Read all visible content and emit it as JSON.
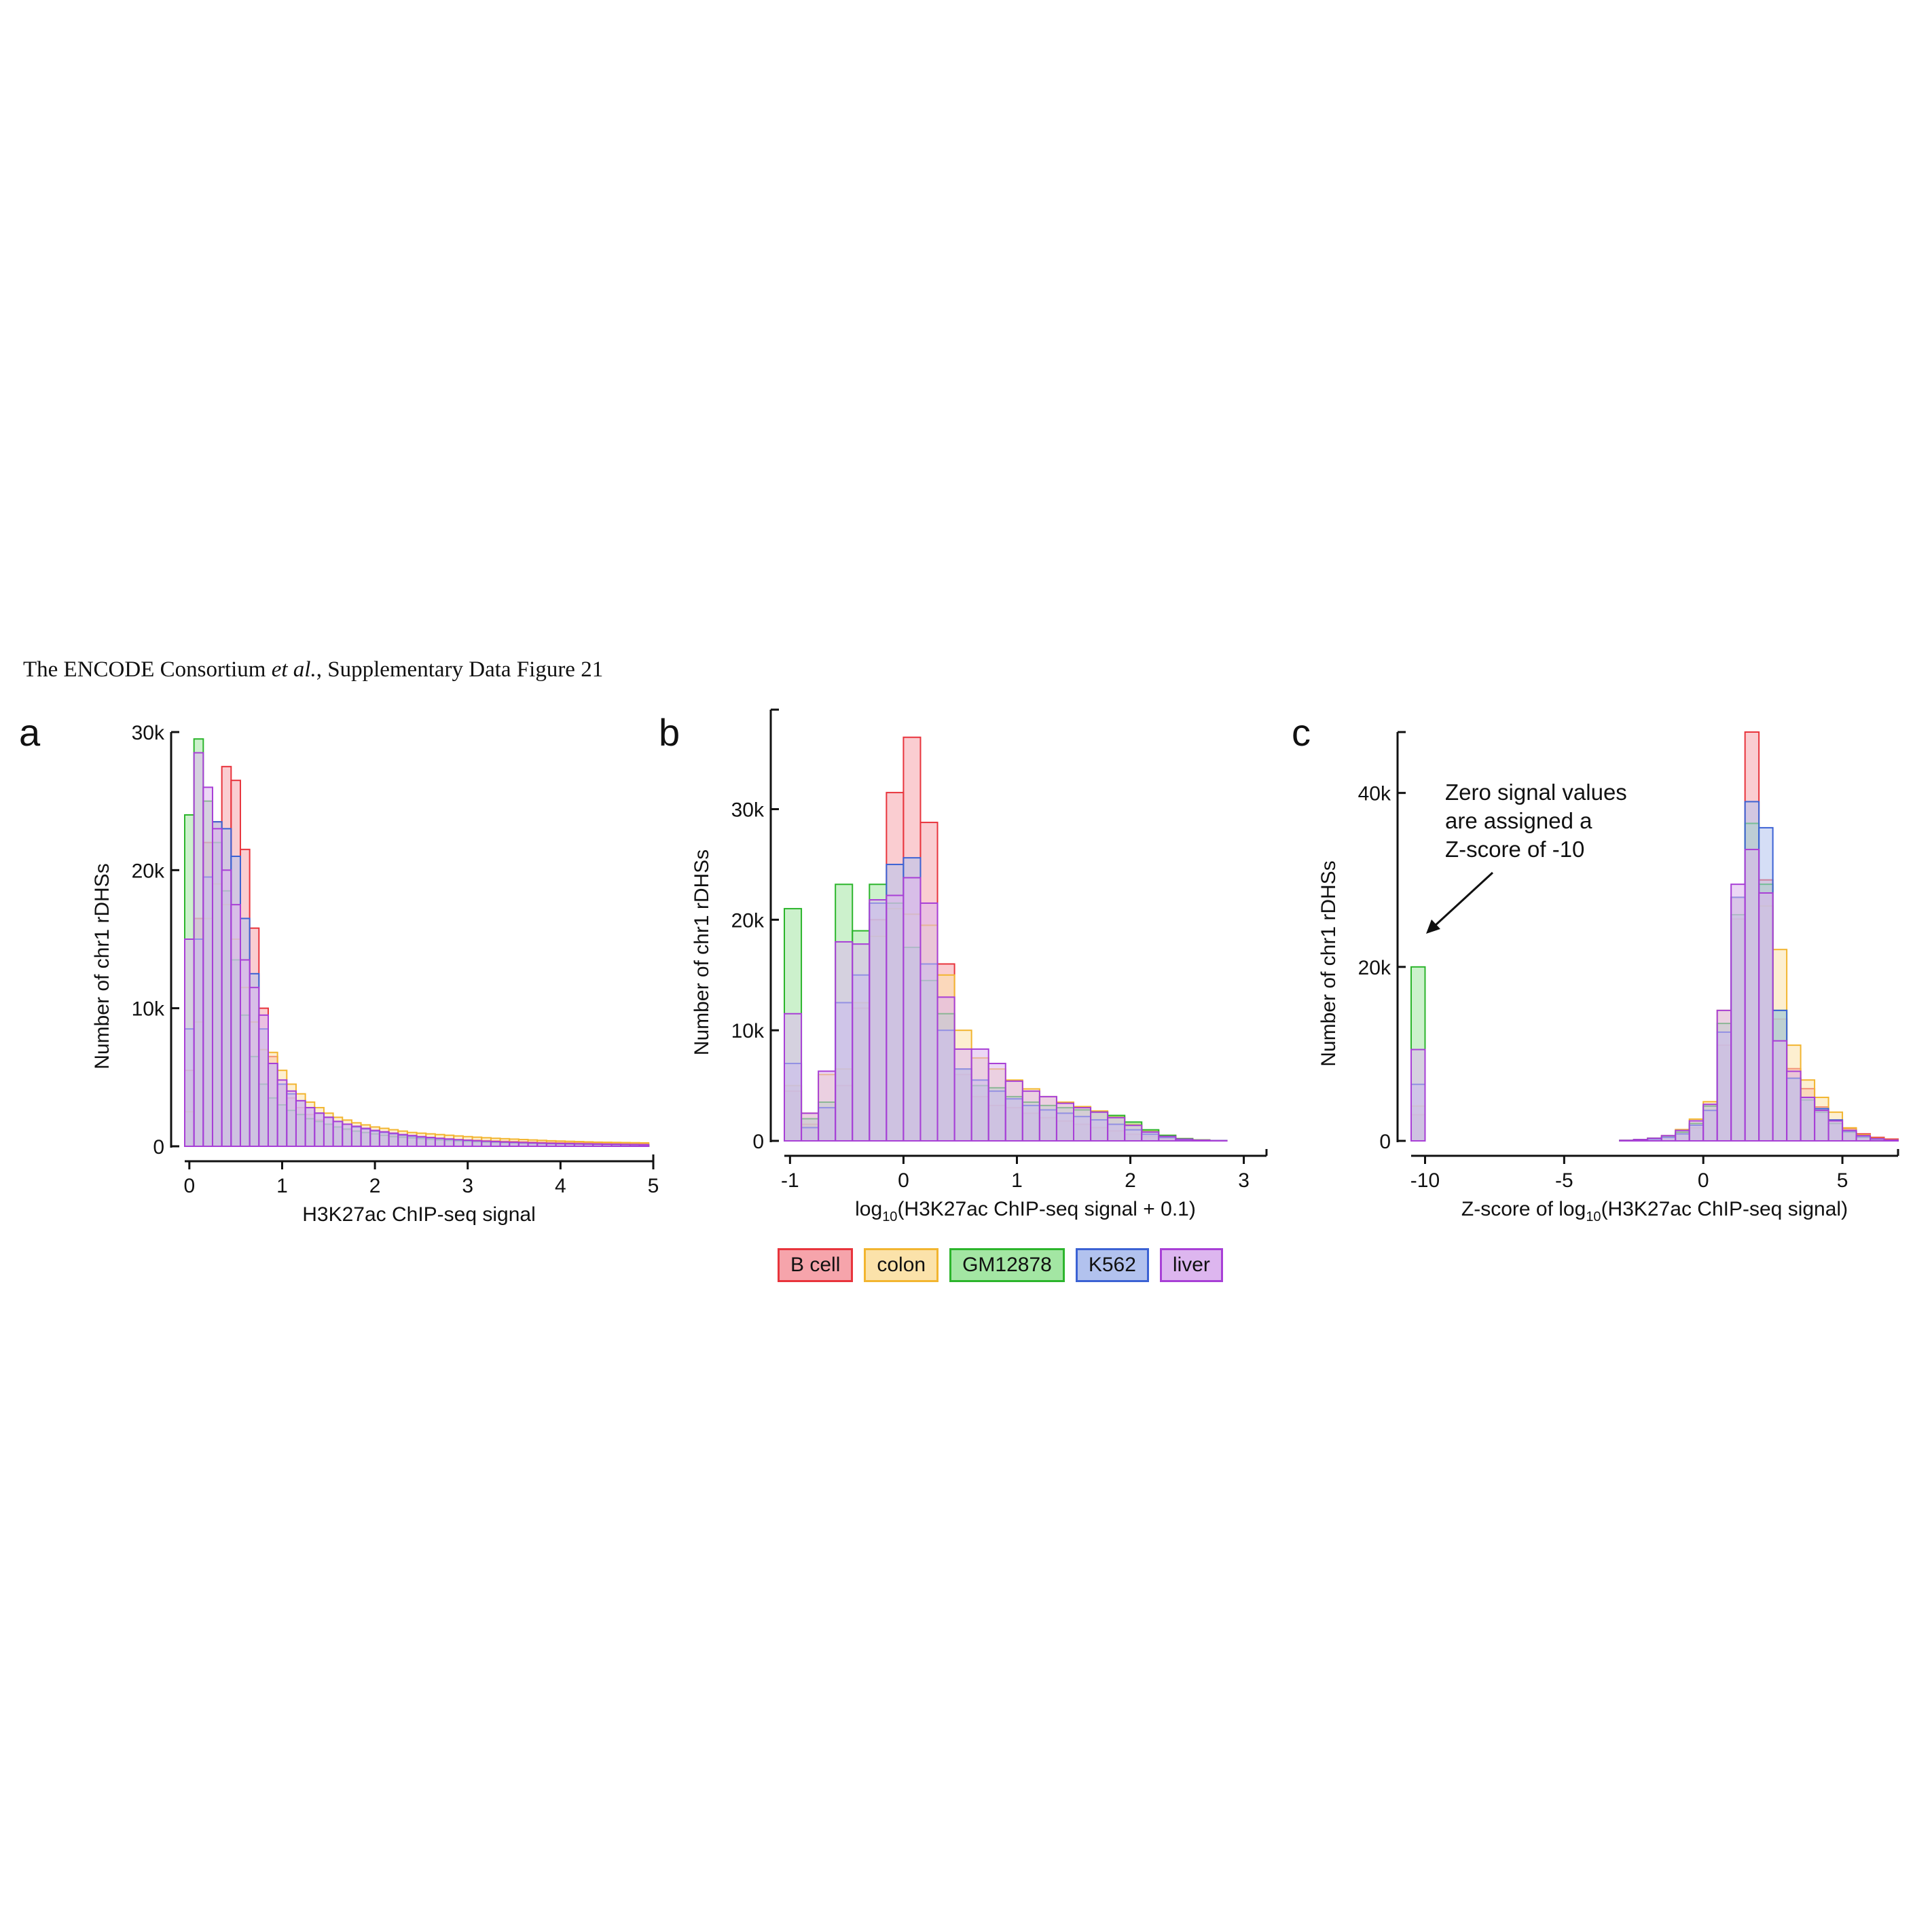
{
  "header": {
    "prefix": "The ENCODE Consortium ",
    "italic": "et al.",
    "suffix": ", Supplementary Data Figure 21"
  },
  "legend": [
    {
      "name": "B cell",
      "color": "#e8343c",
      "fill": "#f6a4ab"
    },
    {
      "name": "colon",
      "color": "#f2b530",
      "fill": "#fbe2aa"
    },
    {
      "name": "GM12878",
      "color": "#2cb52c",
      "fill": "#a3e6a3"
    },
    {
      "name": "K562",
      "color": "#3b62d4",
      "fill": "#b2c2ee"
    },
    {
      "name": "liver",
      "color": "#a83fd6",
      "fill": "#ddb6ef"
    }
  ],
  "chart_data": [
    {
      "panel": "a",
      "type": "histogram",
      "xlabel": "H3K27ac ChIP-seq signal",
      "ylabel": "Number of chr1 rDHSs",
      "xlim": [
        -0.05,
        5
      ],
      "ylim": [
        0,
        30000
      ],
      "xticks": [
        "0",
        "1",
        "2",
        "3",
        "4",
        "5"
      ],
      "yticks": [
        "0",
        "10k",
        "20k",
        "30k"
      ],
      "bin_start": -0.05,
      "bin_width": 0.1,
      "series": [
        {
          "name": "B cell",
          "values": [
            5500,
            16500,
            22000,
            23500,
            27500,
            26500,
            21500,
            15800,
            10000,
            6500,
            4500,
            3500,
            2800,
            2300,
            1900,
            1600,
            1400,
            1200,
            1100,
            1000,
            900,
            800,
            750,
            700,
            650,
            600,
            550,
            520,
            500,
            470,
            450,
            430,
            400,
            380,
            360,
            340,
            320,
            300,
            280,
            270,
            260,
            250,
            240,
            230,
            220,
            210,
            200,
            190,
            180,
            170
          ]
        },
        {
          "name": "colon",
          "values": [
            2500,
            9000,
            16500,
            19000,
            17500,
            15000,
            11500,
            9000,
            7000,
            6800,
            5500,
            4500,
            3800,
            3200,
            2800,
            2400,
            2100,
            1900,
            1700,
            1550,
            1400,
            1300,
            1200,
            1100,
            1000,
            950,
            900,
            850,
            800,
            750,
            700,
            660,
            620,
            580,
            550,
            520,
            490,
            460,
            430,
            400,
            380,
            360,
            340,
            320,
            300,
            290,
            280,
            270,
            260,
            250
          ]
        },
        {
          "name": "GM12878",
          "values": [
            24000,
            29500,
            25000,
            22000,
            18500,
            13500,
            9500,
            6500,
            4500,
            3500,
            3000,
            2600,
            2300,
            2000,
            1800,
            1600,
            1400,
            1250,
            1100,
            1000,
            900,
            800,
            700,
            650,
            600,
            550,
            500,
            460,
            420,
            380,
            350,
            320,
            300,
            280,
            260,
            240,
            220,
            200,
            190,
            180,
            170,
            160,
            150,
            140,
            130,
            120,
            110,
            100,
            90,
            80
          ]
        },
        {
          "name": "K562",
          "values": [
            8500,
            15000,
            19500,
            23500,
            23000,
            21000,
            16500,
            12500,
            8500,
            6000,
            4500,
            3800,
            3300,
            2800,
            2400,
            2100,
            1800,
            1600,
            1400,
            1250,
            1100,
            1000,
            900,
            800,
            720,
            650,
            600,
            550,
            500,
            460,
            420,
            390,
            360,
            330,
            300,
            280,
            260,
            240,
            220,
            200,
            190,
            180,
            170,
            160,
            150,
            140,
            130,
            120,
            110,
            100
          ]
        },
        {
          "name": "liver",
          "values": [
            15000,
            28500,
            26000,
            23000,
            20000,
            17500,
            13500,
            11500,
            9500,
            6000,
            4800,
            4000,
            3300,
            2800,
            2400,
            2100,
            1800,
            1600,
            1450,
            1300,
            1150,
            1050,
            950,
            850,
            780,
            700,
            640,
            580,
            530,
            480,
            440,
            400,
            370,
            340,
            310,
            290,
            270,
            250,
            230,
            210,
            200,
            190,
            180,
            170,
            160,
            150,
            140,
            130,
            120,
            110
          ]
        }
      ]
    },
    {
      "panel": "b",
      "type": "histogram",
      "xlabel_parts": [
        "log",
        "10",
        "(H3K27ac ChIP-seq signal + 0.1)"
      ],
      "ylabel": "Number of chr1 rDHSs",
      "xlim": [
        -1.05,
        3.2
      ],
      "ylim": [
        0,
        39000
      ],
      "xticks": [
        "-1",
        "0",
        "1",
        "2",
        "3"
      ],
      "yticks": [
        "0",
        "10k",
        "20k",
        "30k"
      ],
      "bin_start": -1.05,
      "bin_width": 0.15,
      "series": [
        {
          "name": "B cell",
          "values": [
            4500,
            1500,
            3000,
            5000,
            12000,
            20000,
            31500,
            36500,
            28800,
            16000,
            6000,
            4000,
            3200,
            3000,
            2500,
            2100,
            1800,
            1500,
            1200,
            900,
            600,
            400,
            200,
            100,
            50,
            30
          ]
        },
        {
          "name": "colon",
          "values": [
            5000,
            2500,
            6000,
            6500,
            12500,
            18500,
            21000,
            20500,
            19500,
            15000,
            10000,
            7500,
            6500,
            5500,
            4700,
            4000,
            3500,
            3100,
            2700,
            2200,
            1500,
            900,
            500,
            200,
            80,
            30
          ]
        },
        {
          "name": "GM12878",
          "values": [
            21000,
            2000,
            3500,
            23200,
            19000,
            23200,
            21500,
            17500,
            14500,
            11500,
            6500,
            5000,
            4800,
            4000,
            3500,
            3200,
            3000,
            2800,
            2600,
            2300,
            1700,
            1000,
            500,
            200,
            80,
            30
          ]
        },
        {
          "name": "K562",
          "values": [
            7000,
            1200,
            3000,
            12500,
            15000,
            21500,
            25000,
            25600,
            16000,
            10000,
            6500,
            5500,
            4500,
            3800,
            3200,
            2800,
            2500,
            2200,
            1900,
            1500,
            1000,
            600,
            300,
            120,
            50,
            20
          ]
        },
        {
          "name": "liver",
          "values": [
            11500,
            2500,
            6300,
            18000,
            17800,
            21800,
            22200,
            23800,
            21500,
            13000,
            8300,
            8300,
            7000,
            5400,
            4500,
            4000,
            3400,
            3000,
            2600,
            2100,
            1400,
            800,
            400,
            150,
            60,
            20
          ]
        }
      ]
    },
    {
      "panel": "c",
      "type": "histogram",
      "xlabel_parts": [
        "Z-score of log",
        "10",
        "(H3K27ac ChIP-seq signal)"
      ],
      "ylabel": "Number of chr1 rDHSs",
      "xlim": [
        -10.5,
        7
      ],
      "ylim": [
        0,
        47000
      ],
      "xticks": [
        "-10",
        "-5",
        "0",
        "5"
      ],
      "yticks": [
        "0",
        "20k",
        "40k"
      ],
      "annotation": [
        "Zero signal values",
        "are assigned a",
        "Z-score of -10"
      ],
      "bin_start": -10.5,
      "bin_width": 0.5,
      "series": [
        {
          "name": "B cell",
          "values": [
            3000,
            0,
            0,
            0,
            0,
            0,
            0,
            0,
            0,
            0,
            0,
            0,
            0,
            0,
            0,
            50,
            100,
            200,
            400,
            800,
            1500,
            3500,
            11000,
            25500,
            47000,
            30000,
            14000,
            8300,
            6000,
            3900,
            2400,
            1400,
            800,
            400,
            200,
            50
          ]
        },
        {
          "name": "colon",
          "values": [
            4000,
            0,
            0,
            0,
            0,
            0,
            0,
            0,
            0,
            0,
            0,
            0,
            0,
            0,
            0,
            50,
            150,
            300,
            600,
            1300,
            2500,
            4500,
            15000,
            28000,
            33500,
            27000,
            22000,
            11000,
            7000,
            5000,
            3300,
            1500,
            700,
            300,
            100,
            30
          ]
        },
        {
          "name": "GM12878",
          "values": [
            20000,
            0,
            0,
            0,
            0,
            0,
            0,
            0,
            0,
            0,
            0,
            0,
            0,
            0,
            0,
            50,
            150,
            300,
            500,
            1000,
            2000,
            4000,
            13500,
            26000,
            36500,
            29500,
            15000,
            7200,
            4700,
            3300,
            2000,
            1000,
            400,
            150,
            50,
            20
          ]
        },
        {
          "name": "K562",
          "values": [
            6500,
            0,
            0,
            0,
            0,
            0,
            0,
            0,
            0,
            0,
            0,
            0,
            0,
            0,
            0,
            50,
            100,
            200,
            400,
            800,
            1800,
            3500,
            12500,
            28000,
            39000,
            36000,
            15000,
            7200,
            5000,
            3700,
            2400,
            1100,
            500,
            200,
            60,
            20
          ]
        },
        {
          "name": "liver",
          "values": [
            10500,
            0,
            0,
            0,
            0,
            0,
            0,
            0,
            0,
            0,
            0,
            0,
            0,
            0,
            0,
            50,
            150,
            300,
            600,
            1200,
            2300,
            4200,
            15000,
            29500,
            33500,
            28500,
            11500,
            8000,
            5000,
            3500,
            2300,
            1200,
            600,
            250,
            80,
            30
          ]
        }
      ]
    }
  ]
}
